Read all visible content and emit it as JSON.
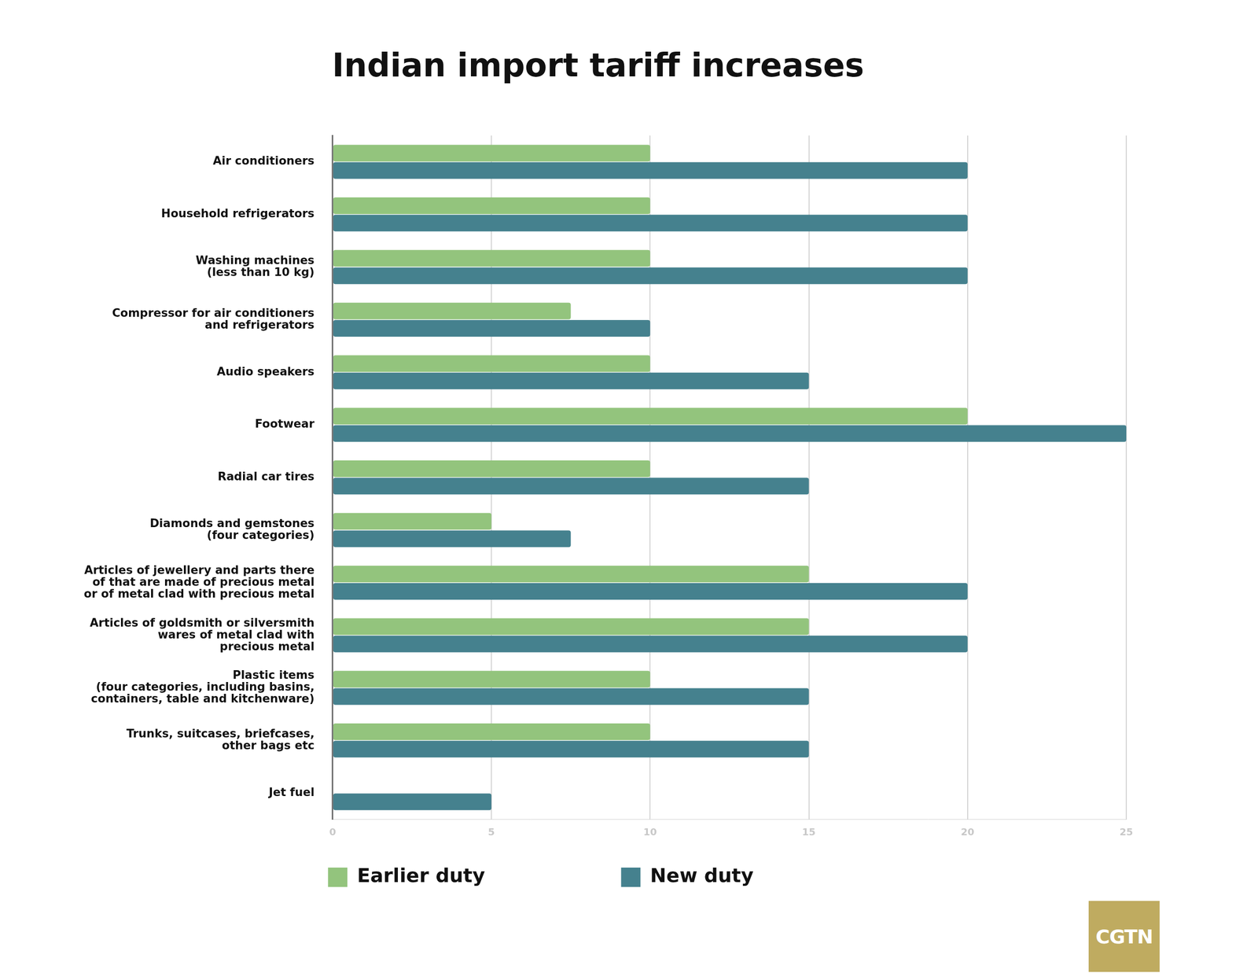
{
  "chart_data": {
    "type": "bar",
    "title": "Indian import tariff increases",
    "orientation": "horizontal",
    "categories": [
      "Air conditioners",
      "Household refrigerators",
      "Washing machines\n(less than 10 kg)",
      "Compressor for air conditioners\nand refrigerators",
      "Audio speakers",
      "Footwear",
      "Radial car tires",
      "Diamonds and gemstones\n(four categories)",
      "Articles of jewellery and parts there\nof that are made of precious metal\nor of metal clad with precious metal",
      "Articles of goldsmith or silversmith\nwares of metal clad with\nprecious metal",
      "Plastic items\n(four categories, including basins,\ncontainers, table and kitchenware)",
      "Trunks, suitcases, briefcases,\nother bags etc",
      "Jet fuel"
    ],
    "series": [
      {
        "name": "Earlier duty",
        "color": "#93c47d",
        "values": [
          10,
          10,
          10,
          7.5,
          10,
          20,
          10,
          5,
          15,
          15,
          10,
          10,
          0
        ]
      },
      {
        "name": "New duty",
        "color": "#45818e",
        "values": [
          20,
          20,
          20,
          10,
          15,
          25,
          15,
          7.5,
          20,
          20,
          15,
          15,
          5
        ]
      }
    ],
    "xlim": [
      0,
      25
    ],
    "xticks": [
      0,
      5,
      10,
      15,
      20,
      25
    ],
    "grid": true,
    "legend": "bottom",
    "annotation": "CGTN"
  }
}
